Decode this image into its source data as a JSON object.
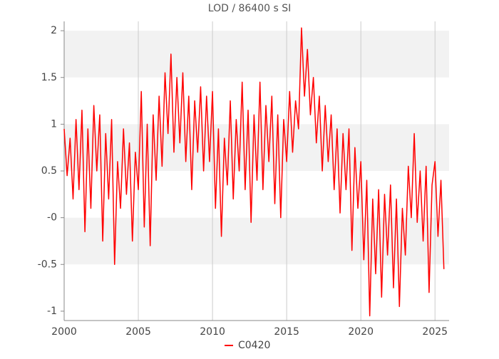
{
  "chart_data": {
    "type": "line",
    "title": "LOD / 86400 s SI",
    "x": [
      2000,
      2000.2,
      2000.4,
      2000.6,
      2000.8,
      2001,
      2001.2,
      2001.4,
      2001.6,
      2001.8,
      2002,
      2002.2,
      2002.4,
      2002.6,
      2002.8,
      2003,
      2003.2,
      2003.4,
      2003.6,
      2003.8,
      2004,
      2004.2,
      2004.4,
      2004.6,
      2004.8,
      2005,
      2005.2,
      2005.4,
      2005.6,
      2005.8,
      2006,
      2006.2,
      2006.4,
      2006.6,
      2006.8,
      2007,
      2007.2,
      2007.4,
      2007.6,
      2007.8,
      2008,
      2008.2,
      2008.4,
      2008.6,
      2008.8,
      2009,
      2009.2,
      2009.4,
      2009.6,
      2009.8,
      2010,
      2010.2,
      2010.4,
      2010.6,
      2010.8,
      2011,
      2011.2,
      2011.4,
      2011.6,
      2011.8,
      2012,
      2012.2,
      2012.4,
      2012.6,
      2012.8,
      2013,
      2013.2,
      2013.4,
      2013.6,
      2013.8,
      2014,
      2014.2,
      2014.4,
      2014.6,
      2014.8,
      2015,
      2015.2,
      2015.4,
      2015.6,
      2015.8,
      2016,
      2016.2,
      2016.4,
      2016.6,
      2016.8,
      2017,
      2017.2,
      2017.4,
      2017.6,
      2017.8,
      2018,
      2018.2,
      2018.4,
      2018.6,
      2018.8,
      2019,
      2019.2,
      2019.4,
      2019.6,
      2019.8,
      2020,
      2020.2,
      2020.4,
      2020.6,
      2020.8,
      2021,
      2021.2,
      2021.4,
      2021.6,
      2021.8,
      2022,
      2022.2,
      2022.4,
      2022.6,
      2022.8,
      2023,
      2023.2,
      2023.4,
      2023.6,
      2023.8,
      2024,
      2024.2,
      2024.4,
      2024.6,
      2024.8,
      2025,
      2025.2,
      2025.4,
      2025.6
    ],
    "series": [
      {
        "name": "C0420",
        "color": "#ff0000",
        "values": [
          0.95,
          0.45,
          0.85,
          0.2,
          1.05,
          0.3,
          1.15,
          -0.15,
          0.95,
          0.1,
          1.2,
          0.5,
          1.1,
          -0.25,
          0.9,
          0.2,
          1.05,
          -0.5,
          0.6,
          0.1,
          0.95,
          0.25,
          0.8,
          -0.25,
          0.7,
          0.3,
          1.35,
          -0.1,
          1.0,
          -0.3,
          1.1,
          0.4,
          1.3,
          0.55,
          1.55,
          0.9,
          1.75,
          0.7,
          1.5,
          0.8,
          1.55,
          0.6,
          1.3,
          0.3,
          1.25,
          0.7,
          1.4,
          0.5,
          1.3,
          0.6,
          1.35,
          0.1,
          0.95,
          -0.2,
          0.85,
          0.35,
          1.25,
          0.2,
          1.05,
          0.5,
          1.45,
          0.3,
          1.15,
          -0.05,
          1.1,
          0.4,
          1.45,
          0.3,
          1.2,
          0.6,
          1.3,
          0.15,
          1.1,
          0.0,
          1.05,
          0.6,
          1.35,
          0.7,
          1.25,
          0.95,
          2.03,
          1.3,
          1.8,
          1.1,
          1.5,
          0.8,
          1.3,
          0.5,
          1.2,
          0.6,
          1.1,
          0.3,
          0.95,
          0.05,
          0.9,
          0.3,
          0.95,
          -0.35,
          0.75,
          0.1,
          0.6,
          -0.45,
          0.4,
          -1.05,
          0.2,
          -0.6,
          0.3,
          -0.85,
          0.25,
          -0.4,
          0.35,
          -0.75,
          0.2,
          -0.95,
          0.1,
          -0.4,
          0.55,
          0.0,
          0.9,
          -0.05,
          0.5,
          -0.25,
          0.55,
          -0.8,
          0.35,
          0.6,
          -0.2,
          0.4,
          -0.55
        ]
      }
    ],
    "xlim": [
      2000,
      2025.95
    ],
    "xticks": [
      2000,
      2005,
      2010,
      2015,
      2020,
      2025
    ],
    "ylim": [
      -1.1,
      2.1
    ],
    "yticks": [
      2,
      1.5,
      1,
      0.5,
      {
        "value": 0,
        "label": "-0"
      },
      -0.5,
      -1
    ],
    "grid": true
  }
}
